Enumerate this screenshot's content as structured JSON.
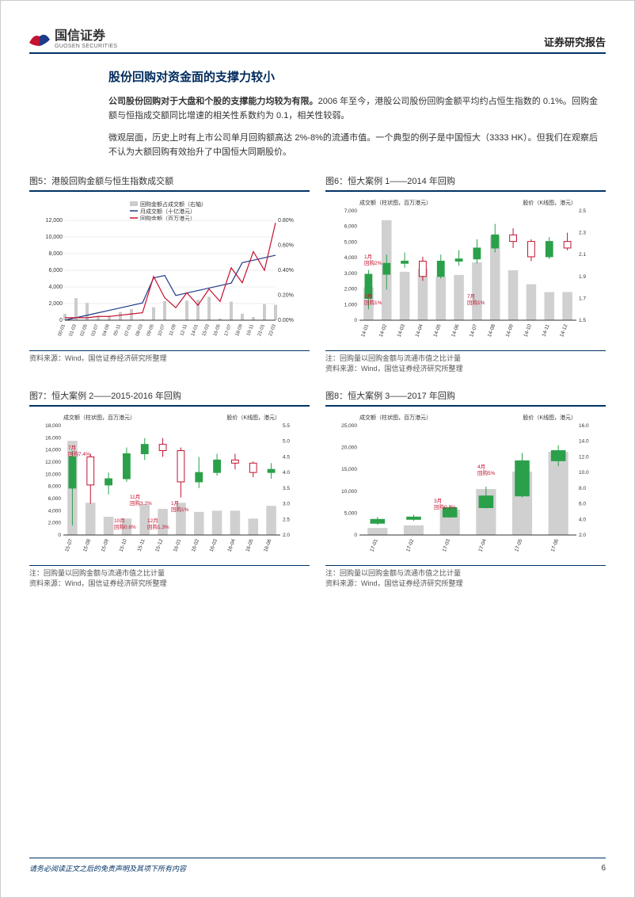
{
  "header": {
    "company_cn": "国信证券",
    "company_en": "GUOSEN SECURITIES",
    "report_type": "证券研究报告"
  },
  "section": {
    "title": "股份回购对资金面的支撑力较小",
    "para1_lead": "公司股份回购对于大盘和个股的支撑能力均较为有限。",
    "para1_rest": "2006 年至今，港股公司股份回购金额平均约占恒生指数的 0.1%。回购金额与恒指成交额同比增速的相关性系数约为 0.1，相关性较弱。",
    "para2": "微观层面，历史上时有上市公司单月回购额高达 2%-8%的流通市值。一个典型的例子是中国恒大（3333 HK）。但我们在观察后不认为大额回购有效抬升了中国恒大同期股价。"
  },
  "chart5": {
    "title": "图5：港股回购金额与恒生指数成交额",
    "legend1": "回购金额占成交额（右轴）",
    "legend2": "月成交额（十亿港元）",
    "legend3": "回购金额（百万港元）",
    "y_left_max": 12000,
    "y_left_ticks": [
      0,
      2000,
      4000,
      6000,
      8000,
      10000,
      12000
    ],
    "y_right_ticks": [
      "0.00%",
      "0.20%",
      "0.40%",
      "0.60%",
      "0.80%"
    ],
    "x_labels": [
      "00-01",
      "01-03",
      "02-05",
      "03-07",
      "04-09",
      "05-11",
      "07-01",
      "08-03",
      "09-05",
      "10-07",
      "11-09",
      "12-11",
      "14-01",
      "15-03",
      "16-05",
      "17-07",
      "18-09",
      "19-11",
      "21-01",
      "22-03"
    ],
    "colors": {
      "bar": "#cccccc",
      "line_blue": "#1e3a8a",
      "line_red": "#c41230"
    },
    "source": "资料来源：Wind，国信证券经济研究所整理"
  },
  "chart6": {
    "title": "图6：恒大案例 1——2014 年回购",
    "left_label": "成交额（柱状图，百万港元）",
    "right_label": "股价（K线图，港元）",
    "y_left_ticks": [
      0,
      1000,
      2000,
      3000,
      4000,
      5000,
      6000,
      7000
    ],
    "y_right_ticks": [
      1.5,
      1.7,
      1.9,
      2.1,
      2.3,
      2.5
    ],
    "x_labels": [
      "14-01",
      "14-02",
      "14-03",
      "14-04",
      "14-05",
      "14-06",
      "14-07",
      "14-08",
      "14-09",
      "14-10",
      "14-11",
      "14-12"
    ],
    "bars": [
      2100,
      6400,
      3100,
      3300,
      2800,
      2900,
      3700,
      5400,
      3200,
      2300,
      1800,
      1800
    ],
    "candles": [
      {
        "o": 1.7,
        "c": 1.92,
        "h": 1.96,
        "l": 1.6,
        "up": true
      },
      {
        "o": 1.92,
        "c": 2.02,
        "h": 2.1,
        "l": 1.78,
        "up": true
      },
      {
        "o": 2.02,
        "c": 2.04,
        "h": 2.12,
        "l": 1.98,
        "up": true
      },
      {
        "o": 2.04,
        "c": 1.9,
        "h": 2.08,
        "l": 1.86,
        "up": false
      },
      {
        "o": 1.9,
        "c": 2.04,
        "h": 2.1,
        "l": 1.88,
        "up": true
      },
      {
        "o": 2.04,
        "c": 2.06,
        "h": 2.14,
        "l": 2.0,
        "up": true
      },
      {
        "o": 2.06,
        "c": 2.16,
        "h": 2.24,
        "l": 2.02,
        "up": true
      },
      {
        "o": 2.16,
        "c": 2.28,
        "h": 2.38,
        "l": 2.12,
        "up": true
      },
      {
        "o": 2.28,
        "c": 2.22,
        "h": 2.34,
        "l": 2.16,
        "up": false
      },
      {
        "o": 2.22,
        "c": 2.08,
        "h": 2.24,
        "l": 2.04,
        "up": false
      },
      {
        "o": 2.08,
        "c": 2.22,
        "h": 2.26,
        "l": 2.06,
        "up": true
      },
      {
        "o": 2.22,
        "c": 2.16,
        "h": 2.3,
        "l": 2.14,
        "up": false
      }
    ],
    "annotations": [
      {
        "x": 0,
        "text": "1月\n回购2%",
        "color": "#c41230"
      },
      {
        "x": 1,
        "text": "2月\n回购1%",
        "color": "#c41230"
      },
      {
        "x": 6,
        "text": "7月\n回购1%",
        "color": "#c41230"
      }
    ],
    "colors": {
      "bar": "#d0d0d0",
      "up": "#2aa04a",
      "down": "#c41230"
    },
    "note": "注：回购量以回购金额与流通市值之比计量",
    "source": "资料来源：Wind，国信证券经济研究所整理"
  },
  "chart7": {
    "title": "图7：恒大案例 2——2015-2016 年回购",
    "left_label": "成交额（柱状图，百万港元）",
    "right_label": "股价（K线图，港元）",
    "y_left_ticks": [
      0,
      2000,
      4000,
      6000,
      8000,
      10000,
      12000,
      14000,
      16000,
      18000
    ],
    "y_right_ticks": [
      2.0,
      2.5,
      3.0,
      3.5,
      4.0,
      4.5,
      5.0,
      5.5
    ],
    "x_labels": [
      "15-07",
      "15-08",
      "15-09",
      "15-10",
      "15-11",
      "15-12",
      "16-01",
      "16-02",
      "16-03",
      "16-04",
      "16-05",
      "16-06"
    ],
    "bars": [
      15500,
      5300,
      3000,
      2700,
      5000,
      4300,
      5300,
      3800,
      4000,
      4000,
      2700,
      4800
    ],
    "candles": [
      {
        "o": 3.5,
        "c": 4.5,
        "h": 4.7,
        "l": 2.3,
        "up": true
      },
      {
        "o": 4.5,
        "c": 3.6,
        "h": 4.6,
        "l": 3.0,
        "up": false
      },
      {
        "o": 3.6,
        "c": 3.8,
        "h": 4.0,
        "l": 3.3,
        "up": true
      },
      {
        "o": 3.8,
        "c": 4.6,
        "h": 4.8,
        "l": 3.7,
        "up": true
      },
      {
        "o": 4.6,
        "c": 4.9,
        "h": 5.1,
        "l": 4.4,
        "up": true
      },
      {
        "o": 4.9,
        "c": 4.7,
        "h": 5.1,
        "l": 4.5,
        "up": false
      },
      {
        "o": 4.7,
        "c": 3.7,
        "h": 4.8,
        "l": 3.2,
        "up": false
      },
      {
        "o": 3.7,
        "c": 4.0,
        "h": 4.5,
        "l": 3.5,
        "up": true
      },
      {
        "o": 4.0,
        "c": 4.4,
        "h": 4.6,
        "l": 3.9,
        "up": true
      },
      {
        "o": 4.4,
        "c": 4.3,
        "h": 4.6,
        "l": 4.1,
        "up": false
      },
      {
        "o": 4.3,
        "c": 4.0,
        "h": 4.35,
        "l": 3.85,
        "up": false
      },
      {
        "o": 4.0,
        "c": 4.1,
        "h": 4.3,
        "l": 3.8,
        "up": true
      }
    ],
    "annotations": [
      {
        "x": 0,
        "text": "7月\n回购7.4%",
        "color": "#c41230"
      },
      {
        "x": 3,
        "text": "10月\n回购0.8%",
        "color": "#c41230"
      },
      {
        "x": 4,
        "text": "11月\n回购3.2%",
        "color": "#c41230"
      },
      {
        "x": 5,
        "text": "12月\n回购1.3%",
        "color": "#c41230"
      },
      {
        "x": 6,
        "text": "1月\n回购1%",
        "color": "#c41230"
      }
    ],
    "colors": {
      "bar": "#d0d0d0",
      "up": "#2aa04a",
      "down": "#c41230"
    },
    "note": "注：回购量以回购金额与流通市值之比计量",
    "source": "资料来源：Wind，国信证券经济研究所整理"
  },
  "chart8": {
    "title": "图8：恒大案例 3——2017 年回购",
    "left_label": "成交额（柱状图，百万港元）",
    "right_label": "股价（K线图，港元）",
    "y_left_ticks": [
      0,
      5000,
      10000,
      15000,
      20000,
      25000
    ],
    "y_right_ticks": [
      2.0,
      4.0,
      6.0,
      8.0,
      10.0,
      12.0,
      14.0,
      16.0
    ],
    "x_labels": [
      "17-01",
      "17-02",
      "17-03",
      "17-04",
      "17-05",
      "17-06"
    ],
    "bars": [
      1600,
      2200,
      5800,
      10500,
      14500,
      19000
    ],
    "candles": [
      {
        "o": 3.5,
        "c": 4.0,
        "h": 4.3,
        "l": 3.3,
        "up": true
      },
      {
        "o": 4.0,
        "c": 4.3,
        "h": 4.6,
        "l": 3.8,
        "up": true
      },
      {
        "o": 4.3,
        "c": 5.5,
        "h": 5.8,
        "l": 4.2,
        "up": true
      },
      {
        "o": 5.5,
        "c": 7.0,
        "h": 8.2,
        "l": 5.4,
        "up": true
      },
      {
        "o": 7.0,
        "c": 11.5,
        "h": 12.5,
        "l": 6.8,
        "up": true
      },
      {
        "o": 11.5,
        "c": 12.8,
        "h": 13.5,
        "l": 10.8,
        "up": true
      }
    ],
    "annotations": [
      {
        "x": 2,
        "text": "3月\n回购0.3%",
        "color": "#c41230"
      },
      {
        "x": 3,
        "text": "4月\n回购5%",
        "color": "#c41230"
      }
    ],
    "colors": {
      "bar": "#d0d0d0",
      "up": "#2aa04a",
      "down": "#c41230"
    },
    "note": "注：回购量以回购金额与流通市值之比计量",
    "source": "资料来源：Wind，国信证券经济研究所整理"
  },
  "footer": {
    "disclaimer": "请务必阅读正文之后的免责声明及其项下所有内容",
    "page_num": "6"
  }
}
